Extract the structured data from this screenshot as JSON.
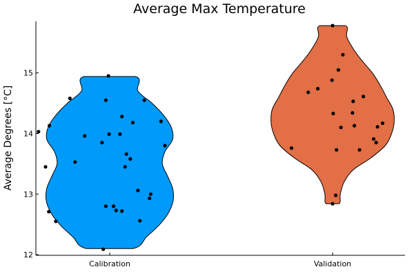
{
  "chart_data": {
    "type": "violin",
    "title": "Average Max Temperature",
    "xlabel": "",
    "ylabel": "Average Degrees [°C]",
    "categories": [
      "Calibration",
      "Validation"
    ],
    "ylim": [
      11.99,
      15.85
    ],
    "yticks": [
      12,
      13,
      14,
      15
    ],
    "grid": false,
    "legend": "none",
    "series": [
      {
        "color": "#009AFA",
        "range": [
          12.1,
          14.94
        ],
        "profile": [
          [
            12.1,
            0.36
          ],
          [
            12.3,
            0.58
          ],
          [
            12.5,
            0.78
          ],
          [
            12.7,
            0.92
          ],
          [
            12.9,
            0.99
          ],
          [
            13.1,
            0.98
          ],
          [
            13.3,
            0.9
          ],
          [
            13.5,
            0.82
          ],
          [
            13.7,
            0.86
          ],
          [
            13.9,
            0.98
          ],
          [
            14.1,
            0.96
          ],
          [
            14.3,
            0.84
          ],
          [
            14.5,
            0.66
          ],
          [
            14.7,
            0.44
          ],
          [
            14.94,
            0.4
          ]
        ],
        "points": [
          [
            14.95,
            -0.02
          ],
          [
            14.58,
            -0.62
          ],
          [
            14.55,
            -0.06
          ],
          [
            14.55,
            0.54
          ],
          [
            14.28,
            0.19
          ],
          [
            14.18,
            0.36
          ],
          [
            14.2,
            0.8
          ],
          [
            14.13,
            -0.94
          ],
          [
            14.03,
            -1.11
          ],
          [
            13.99,
            -0.01
          ],
          [
            13.99,
            0.16
          ],
          [
            13.96,
            -0.39
          ],
          [
            13.85,
            -0.12
          ],
          [
            13.8,
            0.86
          ],
          [
            13.66,
            0.26
          ],
          [
            13.58,
            0.32
          ],
          [
            13.53,
            -0.54
          ],
          [
            13.45,
            0.24
          ],
          [
            13.45,
            -1.0
          ],
          [
            13.06,
            0.44
          ],
          [
            13.0,
            0.64
          ],
          [
            12.93,
            0.62
          ],
          [
            12.8,
            -0.06
          ],
          [
            12.8,
            0.06
          ],
          [
            12.73,
            0.1
          ],
          [
            12.72,
            0.19
          ],
          [
            12.71,
            -0.95
          ],
          [
            12.56,
            0.47
          ],
          [
            12.55,
            -0.84
          ],
          [
            12.09,
            -0.1
          ]
        ]
      },
      {
        "color": "#E26F46",
        "range": [
          12.84,
          15.78
        ],
        "profile": [
          [
            12.84,
            0.1
          ],
          [
            13.0,
            0.12
          ],
          [
            13.2,
            0.18
          ],
          [
            13.4,
            0.32
          ],
          [
            13.6,
            0.6
          ],
          [
            13.8,
            0.82
          ],
          [
            14.0,
            0.92
          ],
          [
            14.2,
            0.96
          ],
          [
            14.4,
            0.94
          ],
          [
            14.6,
            0.84
          ],
          [
            14.8,
            0.74
          ],
          [
            15.0,
            0.62
          ],
          [
            15.2,
            0.46
          ],
          [
            15.4,
            0.32
          ],
          [
            15.6,
            0.22
          ],
          [
            15.78,
            0.2
          ]
        ]
      }
    ]
  }
}
